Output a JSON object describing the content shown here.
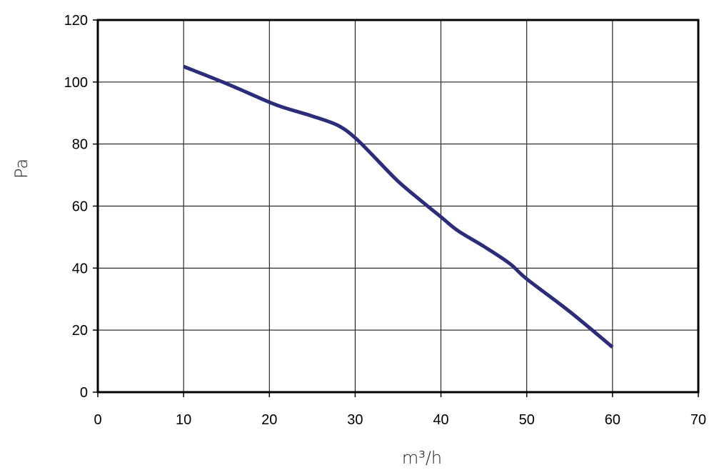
{
  "chart_data": {
    "type": "line",
    "title": "",
    "xlabel": "m³/h",
    "ylabel": "Pa",
    "xlim": [
      0,
      70
    ],
    "ylim": [
      0,
      120
    ],
    "xticks": [
      0,
      10,
      20,
      30,
      40,
      50,
      60,
      70
    ],
    "yticks": [
      0,
      20,
      40,
      60,
      80,
      100,
      120
    ],
    "grid": true,
    "legend": "none",
    "series": [
      {
        "color": "#2b2d7a",
        "x": [
          10,
          15,
          20,
          22,
          25,
          28,
          30,
          32,
          35,
          38,
          40,
          42,
          45,
          48,
          50,
          55,
          60
        ],
        "y": [
          105,
          99.5,
          93.5,
          91.5,
          89,
          86,
          82,
          76.5,
          68,
          61,
          56.5,
          52,
          47,
          41.5,
          36.5,
          26,
          14.5
        ]
      }
    ]
  }
}
